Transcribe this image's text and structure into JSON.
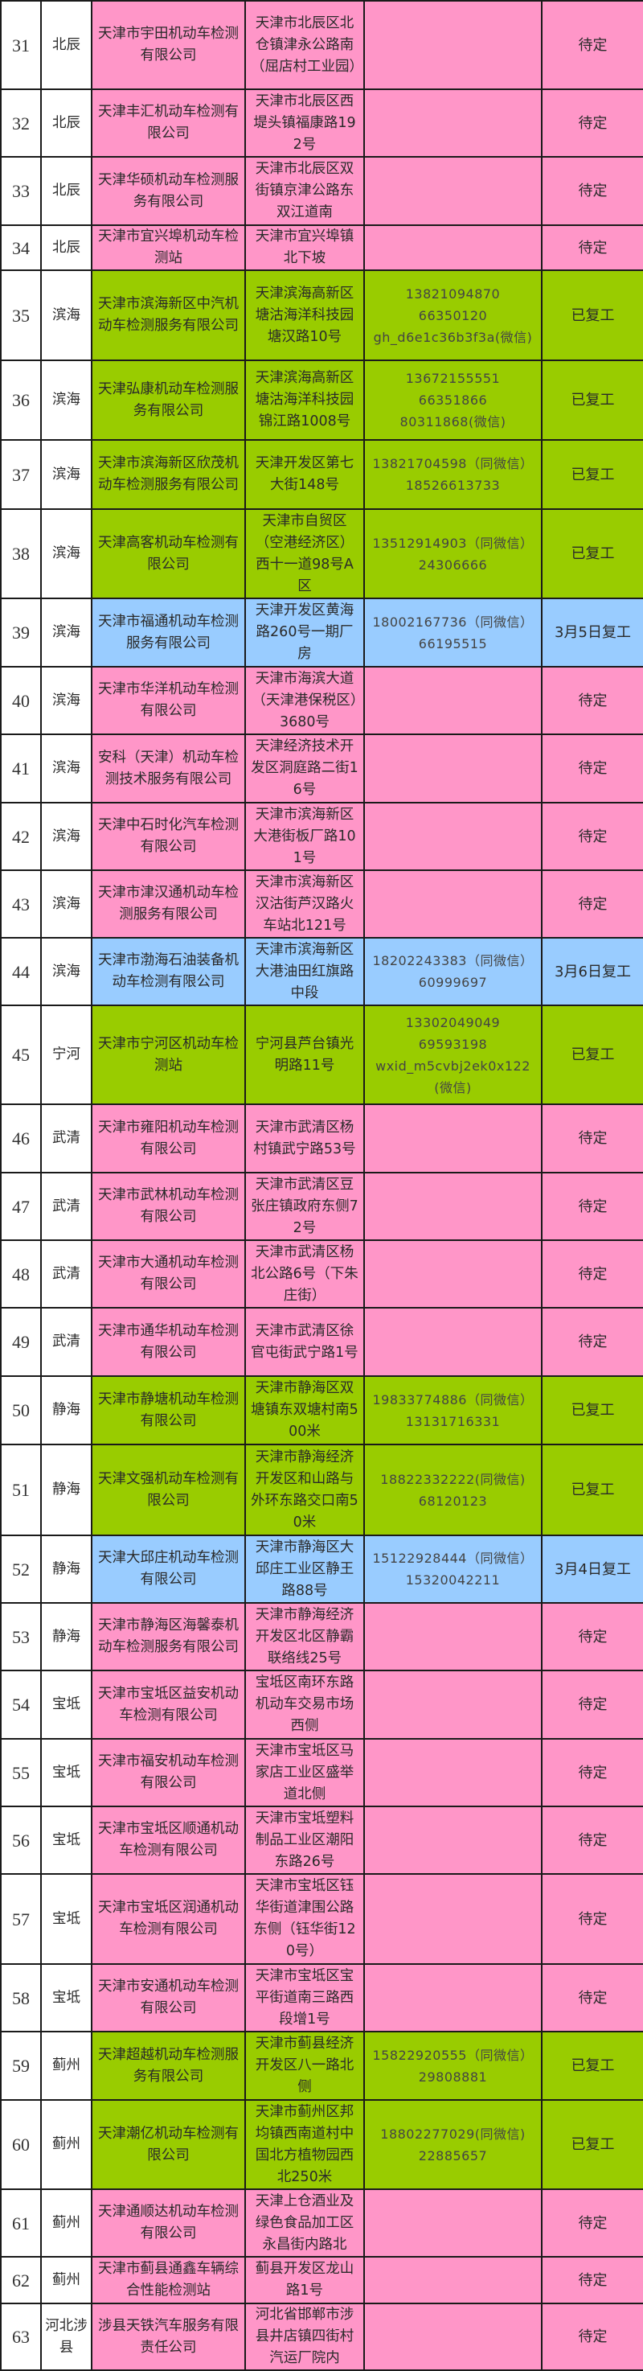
{
  "colors": {
    "pink": "#FF96C8",
    "green": "#99CC00",
    "blue": "#99CCFF"
  },
  "rows": [
    {
      "no": "31",
      "district": "北辰",
      "company": "天津市宇田机动车检测有限公司",
      "address": "天津市北辰区北仓镇津永公路南（屈店村工业园）",
      "contact": [],
      "status": "待定",
      "color": "pink"
    },
    {
      "no": "32",
      "district": "北辰",
      "company": "天津丰汇机动车检测有限公司",
      "address": "天津市北辰区西堤头镇福康路192号",
      "contact": [],
      "status": "待定",
      "color": "pink"
    },
    {
      "no": "33",
      "district": "北辰",
      "company": "天津华硕机动车检测服务有限公司",
      "address": "天津市北辰区双街镇京津公路东双江道南",
      "contact": [],
      "status": "待定",
      "color": "pink"
    },
    {
      "no": "34",
      "district": "北辰",
      "company": "天津市宜兴埠机动车检测站",
      "address": "天津市宜兴埠镇北下坡",
      "contact": [],
      "status": "待定",
      "color": "pink"
    },
    {
      "no": "35",
      "district": "滨海",
      "company": "天津市滨海新区中汽机动车检测服务有限公司",
      "address": "天津滨海高新区塘沽海洋科技园塘汉路10号",
      "contact": [
        "13821094870",
        "66350120",
        "gh_d6e1c36b3f3a(微信)"
      ],
      "status": "已复工",
      "color": "green"
    },
    {
      "no": "36",
      "district": "滨海",
      "company": "天津弘康机动车检测服务有限公司",
      "address": "天津滨海高新区塘沽海洋科技园锦江路1008号",
      "contact": [
        "13672155551",
        "66351866",
        "80311868(微信)"
      ],
      "status": "已复工",
      "color": "green"
    },
    {
      "no": "37",
      "district": "滨海",
      "company": "天津市滨海新区欣茂机动车检测服务有限公司",
      "address": "天津开发区第七大街148号",
      "contact": [
        "13821704598（同微信）",
        "18526613733"
      ],
      "status": "已复工",
      "color": "green"
    },
    {
      "no": "38",
      "district": "滨海",
      "company": "天津高客机动车检测有限公司",
      "address": "天津市自贸区（空港经济区）西十一道98号A区",
      "contact": [
        "13512914903（同微信）",
        "24306666"
      ],
      "status": "已复工",
      "color": "green"
    },
    {
      "no": "39",
      "district": "滨海",
      "company": "天津市福通机动车检测服务有限公司",
      "address": "天津开发区黄海路260号一期厂房",
      "contact": [
        "18002167736（同微信）",
        "66195515"
      ],
      "status": "3月5日复工",
      "color": "blue"
    },
    {
      "no": "40",
      "district": "滨海",
      "company": "天津市华洋机动车检测有限公司",
      "address": "天津市海滨大道（天津港保税区）3680号",
      "contact": [],
      "status": "待定",
      "color": "pink"
    },
    {
      "no": "41",
      "district": "滨海",
      "company": "安科（天津）机动车检测技术服务有限公司",
      "address": "天津经济技术开发区洞庭路二街16号",
      "contact": [],
      "status": "待定",
      "color": "pink"
    },
    {
      "no": "42",
      "district": "滨海",
      "company": "天津中石时化汽车检测有限公司",
      "address": "天津市滨海新区大港街板厂路101号",
      "contact": [],
      "status": "待定",
      "color": "pink"
    },
    {
      "no": "43",
      "district": "滨海",
      "company": "天津市津汉通机动车检测服务有限公司",
      "address": "天津市滨海新区汉沽街芦汉路火车站北121号",
      "contact": [],
      "status": "待定",
      "color": "pink"
    },
    {
      "no": "44",
      "district": "滨海",
      "company": "天津市渤海石油装备机动车检测有限公司",
      "address": "天津市滨海新区大港油田红旗路中段",
      "contact": [
        "18202243383（同微信）",
        "60999697"
      ],
      "status": "3月6日复工",
      "color": "blue"
    },
    {
      "no": "45",
      "district": "宁河",
      "company": "天津市宁河区机动车检测站",
      "address": "宁河县芦台镇光明路11号",
      "contact": [
        "13302049049",
        "69593198",
        "wxid_m5cvbj2ek0x122",
        "(微信)"
      ],
      "status": "已复工",
      "color": "green"
    },
    {
      "no": "46",
      "district": "武清",
      "company": "天津市雍阳机动车检测有限公司",
      "address": "天津市武清区杨村镇武宁路53号",
      "contact": [],
      "status": "待定",
      "color": "pink"
    },
    {
      "no": "47",
      "district": "武清",
      "company": "天津市武林机动车检测有限公司",
      "address": "天津市武清区豆张庄镇政府东侧72号",
      "contact": [],
      "status": "待定",
      "color": "pink"
    },
    {
      "no": "48",
      "district": "武清",
      "company": "天津市大通机动车检测有限公司",
      "address": "天津市武清区杨北公路6号（下朱庄街）",
      "contact": [],
      "status": "待定",
      "color": "pink"
    },
    {
      "no": "49",
      "district": "武清",
      "company": "天津市通华机动车检测有限公司",
      "address": "天津市武清区徐官屯街武宁路1号",
      "contact": [],
      "status": "待定",
      "color": "pink"
    },
    {
      "no": "50",
      "district": "静海",
      "company": "天津市静塘机动车检测有限公司",
      "address": "天津市静海区双塘镇东双塘村南500米",
      "contact": [
        "19833774886（同微信）",
        "13131716331"
      ],
      "status": "已复工",
      "color": "green"
    },
    {
      "no": "51",
      "district": "静海",
      "company": "天津文强机动车检测有限公司",
      "address": "天津市静海经济开发区和山路与外环东路交口南50米",
      "contact": [
        "18822332222(同微信)",
        "68120123"
      ],
      "status": "已复工",
      "color": "green"
    },
    {
      "no": "52",
      "district": "静海",
      "company": "天津大邱庄机动车检测有限公司",
      "address": "天津市静海区大邱庄工业区静王路88号",
      "contact": [
        "15122928444（同微信）",
        "15320042211"
      ],
      "status": "3月4日复工",
      "color": "blue"
    },
    {
      "no": "53",
      "district": "静海",
      "company": "天津市静海区海馨泰机动车检测服务有限公司",
      "address": "天津市静海经济开发区北区静霸联络线25号",
      "contact": [],
      "status": "待定",
      "color": "pink"
    },
    {
      "no": "54",
      "district": "宝坻",
      "company": "天津市宝坻区益安机动车检测有限公司",
      "address": "宝坻区南环东路机动车交易市场西侧",
      "contact": [],
      "status": "待定",
      "color": "pink"
    },
    {
      "no": "55",
      "district": "宝坻",
      "company": "天津市福安机动车检测有限公司",
      "address": "天津市宝坻区马家店工业区盛举道北侧",
      "contact": [],
      "status": "待定",
      "color": "pink"
    },
    {
      "no": "56",
      "district": "宝坻",
      "company": "天津市宝坻区顺通机动车检测有限公司",
      "address": "天津市宝坻塑料制品工业区潮阳东路26号",
      "contact": [],
      "status": "待定",
      "color": "pink"
    },
    {
      "no": "57",
      "district": "宝坻",
      "company": "天津市宝坻区润通机动车检测有限公司",
      "address": "天津市宝坻区钰华街道津围公路东侧（钰华街120号）",
      "contact": [],
      "status": "待定",
      "color": "pink"
    },
    {
      "no": "58",
      "district": "宝坻",
      "company": "天津市安通机动车检测有限公司",
      "address": "天津市宝坻区宝平街道南三路西段增1号",
      "contact": [],
      "status": "待定",
      "color": "pink"
    },
    {
      "no": "59",
      "district": "蓟州",
      "company": "天津超越机动车检测服务有限公司",
      "address": "天津市蓟县经济开发区八一路北侧",
      "contact": [
        "15822920555（同微信）",
        "29808881"
      ],
      "status": "已复工",
      "color": "green"
    },
    {
      "no": "60",
      "district": "蓟州",
      "company": "天津潮亿机动车检测有限公司",
      "address": "天津市蓟州区邦均镇西南道村中国北方植物园西北250米",
      "contact": [
        "18802277029(同微信)",
        "22885657"
      ],
      "status": "已复工",
      "color": "green"
    },
    {
      "no": "61",
      "district": "蓟州",
      "company": "天津通顺达机动车检测有限公司",
      "address": "天津上仓酒业及绿色食品加工区永昌街内路北",
      "contact": [],
      "status": "待定",
      "color": "pink"
    },
    {
      "no": "62",
      "district": "蓟州",
      "company": "天津市蓟县通鑫车辆综合性能检测站",
      "address": "蓟县开发区龙山路1号",
      "contact": [],
      "status": "待定",
      "color": "pink"
    },
    {
      "no": "63",
      "district": "河北涉县",
      "company": "涉县天铁汽车服务有限责任公司",
      "address": "河北省邯郸市涉县井店镇四街村汽运厂院内",
      "contact": [],
      "status": "待定",
      "color": "pink"
    }
  ]
}
